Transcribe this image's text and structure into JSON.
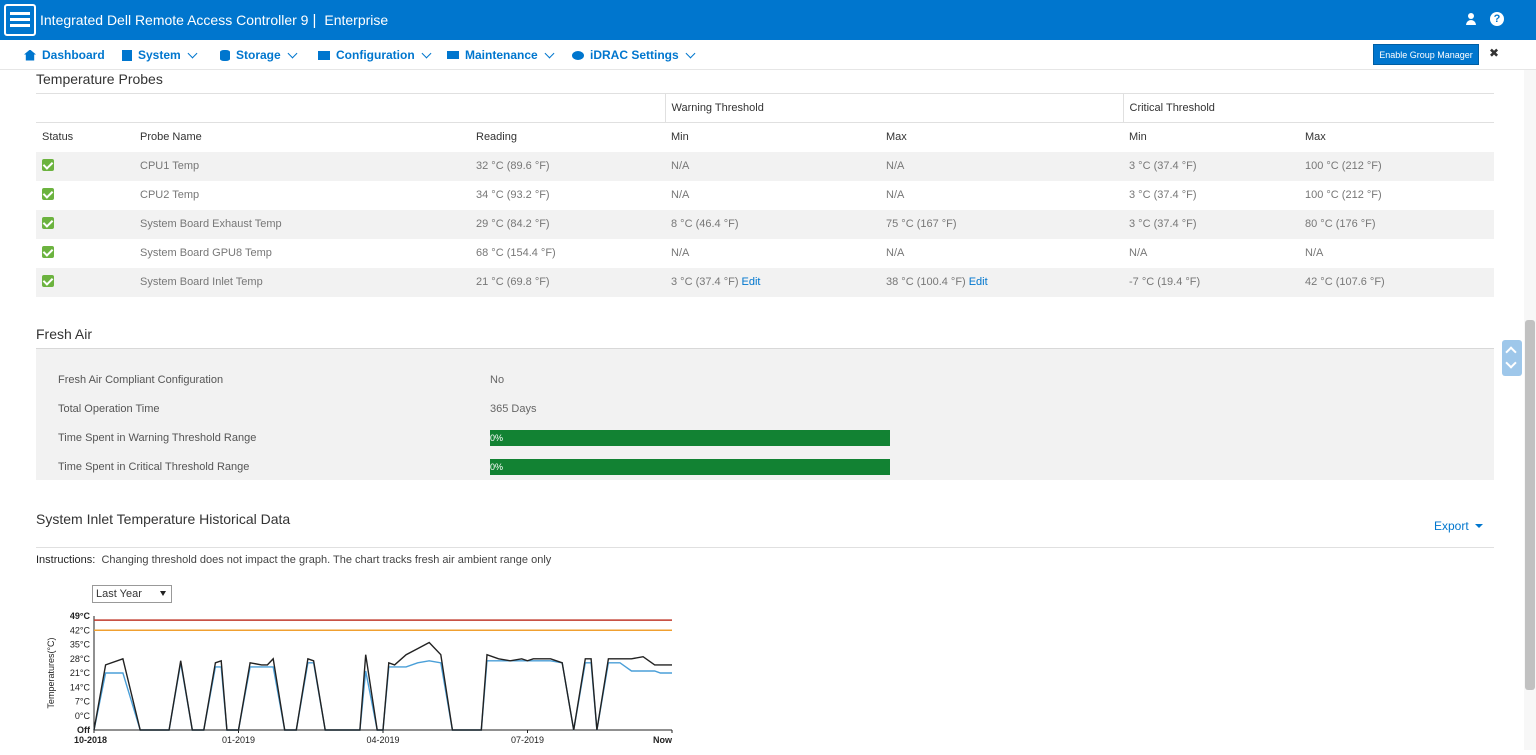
{
  "app": {
    "title": "Integrated Dell Remote Access Controller 9",
    "edition": "Enterprise",
    "colors": {
      "brand": "#0076ce",
      "ok": "#6cb33f",
      "bar": "#128233",
      "warning_line": "#f0a030",
      "critical_line": "#c0392b",
      "reading_line": "#4a9fd8",
      "max_line": "#222222"
    }
  },
  "nav": {
    "items": [
      {
        "label": "Dashboard",
        "icon": "home-icon"
      },
      {
        "label": "System",
        "icon": "server-icon"
      },
      {
        "label": "Storage",
        "icon": "database-icon"
      },
      {
        "label": "Configuration",
        "icon": "config-icon"
      },
      {
        "label": "Maintenance",
        "icon": "maintenance-icon"
      },
      {
        "label": "iDRAC Settings",
        "icon": "settings-icon"
      }
    ],
    "group_manager_button": "Enable Group Manager"
  },
  "probes": {
    "title": "Temperature Probes",
    "group_headers": {
      "warning": "Warning Threshold",
      "critical": "Critical Threshold"
    },
    "columns": {
      "status": "Status",
      "name": "Probe Name",
      "reading": "Reading",
      "warn_min": "Min",
      "warn_max": "Max",
      "crit_min": "Min",
      "crit_max": "Max"
    },
    "edit_label": "Edit",
    "rows": [
      {
        "name": "CPU1 Temp",
        "reading": "32 °C (89.6 °F)",
        "warn_min": "N/A",
        "warn_max": "N/A",
        "crit_min": "3 °C (37.4 °F)",
        "crit_max": "100 °C (212 °F)"
      },
      {
        "name": "CPU2 Temp",
        "reading": "34 °C (93.2 °F)",
        "warn_min": "N/A",
        "warn_max": "N/A",
        "crit_min": "3 °C (37.4 °F)",
        "crit_max": "100 °C (212 °F)"
      },
      {
        "name": "System Board Exhaust Temp",
        "reading": "29 °C (84.2 °F)",
        "warn_min": "8 °C (46.4 °F)",
        "warn_max": "75 °C (167 °F)",
        "crit_min": "3 °C (37.4 °F)",
        "crit_max": "80 °C (176 °F)"
      },
      {
        "name": "System Board GPU8 Temp",
        "reading": "68 °C (154.4 °F)",
        "warn_min": "N/A",
        "warn_max": "N/A",
        "crit_min": "N/A",
        "crit_max": "N/A"
      },
      {
        "name": "System Board Inlet Temp",
        "reading": "21 °C (69.8 °F)",
        "warn_min": "3 °C (37.4 °F)",
        "warn_max": "38 °C (100.4 °F)",
        "crit_min": "-7 °C (19.4 °F)",
        "crit_max": "42 °C (107.6 °F)"
      }
    ]
  },
  "fresh_air": {
    "title": "Fresh Air",
    "compliant_label": "Fresh Air Compliant Configuration",
    "compliant_value": "No",
    "operation_label": "Total Operation Time",
    "operation_value": "365 Days",
    "warning_label": "Time Spent in Warning Threshold Range",
    "warning_value": "0%",
    "warning_fraction": 0,
    "critical_label": "Time Spent in Critical Threshold Range",
    "critical_value": "0%",
    "critical_fraction": 0
  },
  "history": {
    "title": "System Inlet Temperature Historical Data",
    "export_label": "Export",
    "instructions_label": "Instructions:",
    "instructions_text": "Changing threshold does not impact the graph. The chart tracks fresh air ambient range only",
    "range_selected": "Last Year"
  },
  "chart_data": {
    "type": "line",
    "ylabel": "Temperatures(°C)",
    "y_ticks": [
      "49°C",
      "42°C",
      "35°C",
      "28°C",
      "21°C",
      "14°C",
      "7°C",
      "0°C",
      "Off"
    ],
    "ylim": [
      -7,
      49
    ],
    "x_ticks": [
      "10-2018",
      "01-2019",
      "04-2019",
      "07-2019",
      "Now"
    ],
    "thresholds": [
      {
        "value": 47,
        "color": "#c0392b"
      },
      {
        "value": 42,
        "color": "#f0a030"
      }
    ],
    "series": [
      {
        "color": "#222222",
        "x": [
          0,
          2,
          5,
          8,
          10,
          13,
          15,
          17,
          19,
          21,
          22,
          23,
          25,
          27,
          29,
          30,
          31,
          33,
          35,
          37,
          38,
          40,
          41,
          42,
          44,
          46,
          47,
          49,
          50,
          51,
          52,
          54,
          56,
          58,
          60,
          62,
          64,
          66,
          67,
          68,
          70,
          72,
          74,
          75,
          76,
          77,
          79,
          81,
          83,
          85,
          86,
          87,
          89,
          91,
          92,
          93,
          95,
          97,
          98,
          100
        ],
        "values": [
          -7,
          25,
          28,
          -7,
          -7,
          -7,
          27,
          -7,
          -7,
          26,
          27,
          -7,
          -7,
          26,
          25,
          25,
          28,
          -7,
          -7,
          28,
          27,
          -7,
          -7,
          -7,
          -7,
          -7,
          30,
          -7,
          -7,
          26,
          25,
          30,
          33,
          36,
          30,
          -7,
          -7,
          -7,
          -7,
          30,
          28,
          27,
          28,
          27,
          28,
          28,
          28,
          26,
          -7,
          28,
          28,
          -7,
          28,
          28,
          28,
          28,
          29,
          25,
          25,
          25
        ]
      },
      {
        "color": "#4a9fd8",
        "x": [
          0,
          2,
          5,
          8,
          10,
          13,
          15,
          17,
          19,
          21,
          22,
          23,
          25,
          27,
          29,
          30,
          31,
          33,
          35,
          37,
          38,
          40,
          41,
          42,
          44,
          46,
          47,
          49,
          50,
          51,
          52,
          54,
          56,
          58,
          60,
          62,
          64,
          66,
          67,
          68,
          70,
          72,
          74,
          75,
          76,
          77,
          79,
          81,
          83,
          85,
          86,
          87,
          89,
          91,
          92,
          93,
          95,
          97,
          98,
          100
        ],
        "values": [
          -7,
          21,
          21,
          -7,
          -7,
          -7,
          26,
          -7,
          -7,
          24,
          24,
          -7,
          -7,
          24,
          24,
          24,
          24,
          -7,
          -7,
          26,
          26,
          -7,
          -7,
          -7,
          -7,
          -7,
          22,
          -7,
          -7,
          24,
          24,
          24,
          26,
          27,
          26,
          -7,
          -7,
          -7,
          -7,
          27,
          27,
          27,
          27,
          27,
          27,
          27,
          27,
          26,
          -7,
          26,
          26,
          -7,
          26,
          26,
          24,
          22,
          22,
          22,
          21,
          21
        ]
      }
    ]
  }
}
